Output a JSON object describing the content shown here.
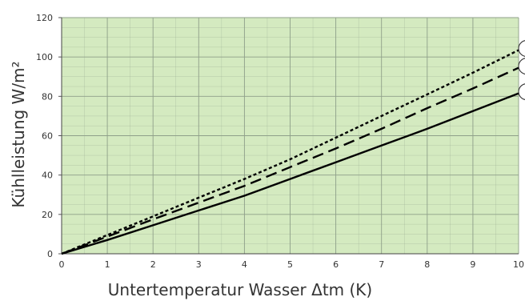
{
  "chart_data": {
    "type": "line",
    "xlabel": "Untertemperatur Wasser Δtm (K)",
    "ylabel": "Kühlleistung W/m²",
    "xlim": [
      0,
      10
    ],
    "ylim": [
      0,
      120
    ],
    "x_ticks": [
      "0",
      "1",
      "2",
      "3",
      "4",
      "5",
      "6",
      "7",
      "8",
      "9",
      "10"
    ],
    "y_ticks": [
      "0",
      "20",
      "40",
      "60",
      "80",
      "100",
      "120"
    ],
    "grid": true,
    "plot_background": "#d4eac0",
    "grid_color": "#8fa08a",
    "line_color": "#000000",
    "series": [
      {
        "style": "dotted",
        "x": [
          0,
          1,
          2,
          3,
          4,
          5,
          6,
          7,
          8,
          9,
          10
        ],
        "values": [
          0,
          9.5,
          19,
          28.5,
          38,
          48,
          59,
          70,
          81,
          92,
          103.5
        ]
      },
      {
        "style": "dashed",
        "x": [
          0,
          1,
          2,
          3,
          4,
          5,
          6,
          7,
          8,
          9,
          10
        ],
        "values": [
          0,
          8.7,
          17.5,
          26,
          34.5,
          44,
          53.5,
          63.5,
          74,
          84,
          94.5
        ]
      },
      {
        "style": "solid",
        "x": [
          0,
          1,
          2,
          3,
          4,
          5,
          6,
          7,
          8,
          9,
          10
        ],
        "values": [
          0,
          7,
          14.5,
          22,
          29.5,
          38,
          46.5,
          55,
          63.5,
          72.5,
          81.5
        ]
      }
    ]
  }
}
